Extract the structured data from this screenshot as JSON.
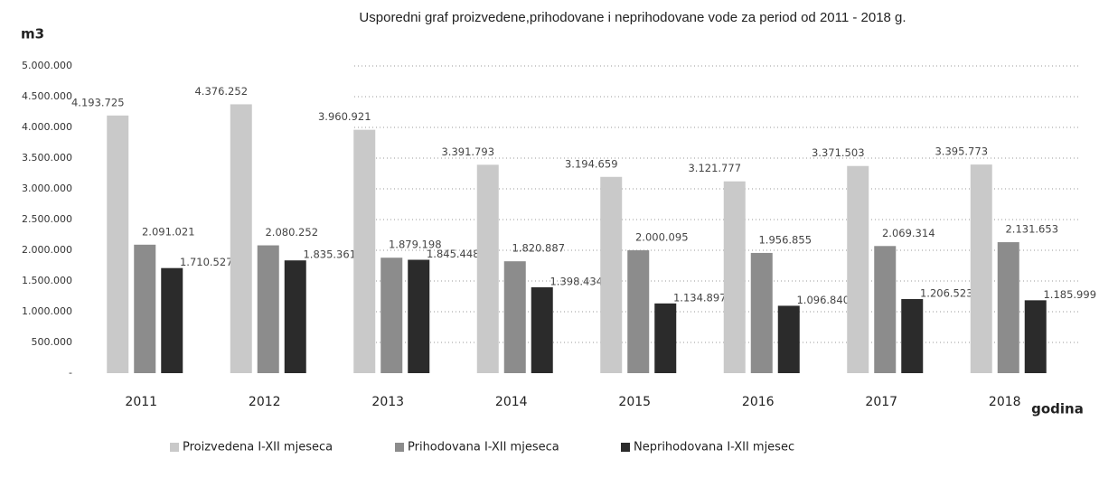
{
  "chart_data": {
    "type": "bar",
    "title": "Usporedni graf proizvedene,prihodovane i neprihodovane vode za period od 2011 - 2018 g.",
    "y_label": "m3",
    "x_label": "godina",
    "categories": [
      "2011",
      "2012",
      "2013",
      "2014",
      "2015",
      "2016",
      "2017",
      "2018"
    ],
    "series": [
      {
        "name": "Proizvedena I-XII mjeseca",
        "color": "#c9c9c9",
        "values": [
          4193725,
          4376252,
          3960921,
          3391793,
          3194659,
          3121777,
          3371503,
          3395773
        ],
        "value_labels": [
          "4.193.725",
          "4.376.252",
          "3.960.921",
          "3.391.793",
          "3.194.659",
          "3.121.777",
          "3.371.503",
          "3.395.773"
        ]
      },
      {
        "name": "Prihodovana I-XII mjeseca",
        "color": "#8c8c8c",
        "values": [
          2091021,
          2080252,
          1879198,
          1820887,
          2000095,
          1956855,
          2069314,
          2131653
        ],
        "value_labels": [
          "2.091.021",
          "2.080.252",
          "1.879.198",
          "1.820.887",
          "2.000.095",
          "1.956.855",
          "2.069.314",
          "2.131.653"
        ]
      },
      {
        "name": "Neprihodovana I-XII mjesec",
        "color": "#2b2b2b",
        "values": [
          1710527,
          1835361,
          1845448,
          1398434,
          1134897,
          1096840,
          1206523,
          1185999
        ],
        "value_labels": [
          "1.710.527",
          "1.835.361",
          "1.845.448",
          "1.398.434",
          "1.134.897",
          "1.096.840",
          "1.206.523",
          "1.185.999"
        ]
      }
    ],
    "ylim": [
      0,
      5000000
    ],
    "yticks": [
      {
        "value": 0,
        "label": "-"
      },
      {
        "value": 500000,
        "label": "500.000"
      },
      {
        "value": 1000000,
        "label": "1.000.000"
      },
      {
        "value": 1500000,
        "label": "1.500.000"
      },
      {
        "value": 2000000,
        "label": "2.000.000"
      },
      {
        "value": 2500000,
        "label": "2.500.000"
      },
      {
        "value": 3000000,
        "label": "3.000.000"
      },
      {
        "value": 3500000,
        "label": "3.500.000"
      },
      {
        "value": 4000000,
        "label": "4.000.000"
      },
      {
        "value": 4500000,
        "label": "4.500.000"
      },
      {
        "value": 5000000,
        "label": "5.000.000"
      }
    ],
    "grid": true,
    "legend": "bottom"
  }
}
